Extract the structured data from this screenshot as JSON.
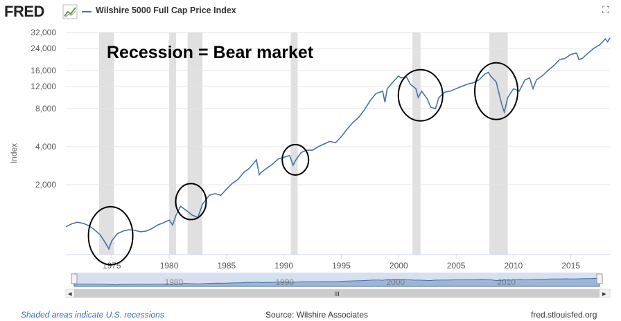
{
  "header": {
    "brand": "FRED",
    "series_name": "Wilshire 5000 Full Cap Price Index"
  },
  "footer": {
    "note": "Shaded areas indicate U.S. recessions",
    "source": "Source: Wilshire Associates",
    "site": "fred.stlouisfed.org"
  },
  "navigator": {
    "labels": [
      "1980",
      "1990",
      "2000",
      "2010"
    ],
    "scroll_glyph": "III"
  },
  "colors": {
    "series": "#4572a7",
    "recession": "#e0e0e0",
    "navigator_fill": "#9db5d6"
  },
  "chart_data": {
    "type": "line",
    "title": "",
    "xlabel": "",
    "ylabel": "Index",
    "y_scale": "log",
    "ylim": [
      560,
      32000
    ],
    "xlim": [
      1971.0,
      2018.4
    ],
    "y_ticks": [
      2000,
      4000,
      8000,
      12000,
      16000,
      24000,
      32000
    ],
    "y_tick_labels": [
      "2,000",
      "4,000",
      "8,000",
      "12,000",
      "16,000",
      "24,000",
      "32,000"
    ],
    "x_ticks": [
      1975,
      1980,
      1985,
      1990,
      1995,
      2000,
      2005,
      2010,
      2015
    ],
    "x_tick_labels": [
      "1975",
      "1980",
      "1985",
      "1990",
      "1995",
      "2000",
      "2005",
      "2010",
      "2015"
    ],
    "grid": true,
    "annotation": "Recession = Bear market",
    "recessions": [
      [
        1973.9,
        1975.2
      ],
      [
        1980.0,
        1980.6
      ],
      [
        1981.6,
        1982.9
      ],
      [
        1990.6,
        1991.2
      ],
      [
        2001.2,
        2001.9
      ],
      [
        2007.9,
        2009.5
      ]
    ],
    "highlight_circles": [
      {
        "x": 1974.9,
        "y": 790
      },
      {
        "x": 1981.9,
        "y": 1470
      },
      {
        "x": 1991.0,
        "y": 3150
      },
      {
        "x": 2001.9,
        "y": 10200
      },
      {
        "x": 2008.5,
        "y": 11000
      }
    ],
    "series": [
      {
        "name": "Wilshire 5000 Full Cap Price Index",
        "x": [
          1971.0,
          1971.5,
          1972.0,
          1972.5,
          1973.0,
          1973.5,
          1974.0,
          1974.5,
          1974.75,
          1975.0,
          1975.5,
          1976.0,
          1976.5,
          1977.0,
          1977.5,
          1978.0,
          1978.5,
          1979.0,
          1979.5,
          1980.0,
          1980.3,
          1980.6,
          1981.0,
          1981.5,
          1982.0,
          1982.5,
          1982.9,
          1983.5,
          1984.0,
          1984.5,
          1985.0,
          1985.5,
          1986.0,
          1986.5,
          1987.0,
          1987.6,
          1987.85,
          1988.0,
          1988.5,
          1989.0,
          1989.5,
          1990.0,
          1990.5,
          1990.8,
          1991.0,
          1991.5,
          1992.0,
          1992.5,
          1993.0,
          1993.5,
          1994.0,
          1994.5,
          1995.0,
          1995.5,
          1996.0,
          1996.5,
          1997.0,
          1997.5,
          1998.0,
          1998.6,
          1998.8,
          1999.0,
          1999.5,
          2000.0,
          2000.2,
          2000.7,
          2001.0,
          2001.5,
          2001.7,
          2002.0,
          2002.5,
          2002.8,
          2003.2,
          2003.5,
          2004.0,
          2004.5,
          2005.0,
          2005.5,
          2006.0,
          2006.5,
          2007.0,
          2007.5,
          2007.8,
          2008.0,
          2008.5,
          2008.8,
          2009.0,
          2009.2,
          2009.5,
          2010.0,
          2010.5,
          2011.0,
          2011.4,
          2011.7,
          2012.0,
          2012.5,
          2013.0,
          2013.5,
          2014.0,
          2014.5,
          2015.0,
          2015.5,
          2015.7,
          2016.0,
          2016.5,
          2017.0,
          2017.5,
          2018.0,
          2018.2,
          2018.4
        ],
        "values": [
          930,
          980,
          1010,
          990,
          950,
          880,
          800,
          680,
          620,
          720,
          820,
          860,
          880,
          870,
          850,
          860,
          900,
          960,
          1000,
          1050,
          960,
          1150,
          1350,
          1250,
          1150,
          1100,
          1400,
          1650,
          1700,
          1650,
          1850,
          2050,
          2200,
          2500,
          2700,
          3150,
          2400,
          2500,
          2700,
          2900,
          3200,
          3300,
          3400,
          2850,
          3100,
          3600,
          3750,
          3750,
          4000,
          4200,
          4400,
          4300,
          4800,
          5500,
          6200,
          6800,
          7800,
          9200,
          10500,
          11000,
          9000,
          11500,
          13000,
          14500,
          14000,
          14200,
          12500,
          11500,
          9800,
          11000,
          9500,
          8200,
          8000,
          9800,
          10800,
          11000,
          11500,
          12000,
          12500,
          12800,
          13500,
          15000,
          15500,
          14500,
          13000,
          10000,
          8500,
          7500,
          9800,
          11500,
          11000,
          13500,
          14000,
          11500,
          13500,
          14500,
          16000,
          17500,
          19500,
          20000,
          21500,
          22000,
          19500,
          20000,
          22000,
          24000,
          25500,
          28500,
          27000,
          29000
        ]
      }
    ]
  }
}
